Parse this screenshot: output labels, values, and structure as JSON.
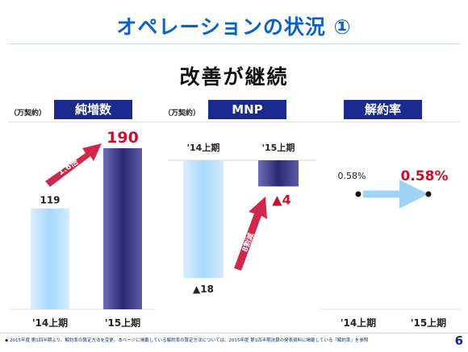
{
  "page": {
    "title": "オペレーションの状況 ①",
    "subtitle": "改善が継続",
    "footnote": "◆ 2015年度 第1四半期より、解約率の算定方法を変更。本ページに掲載している解約率の算定方法については、2015年度 第1四半期決算の発表資料に掲載している「解約率」を参照",
    "page_number": "6"
  },
  "colors": {
    "title": "#0a62c8",
    "header_bg": "#1b2a8f",
    "highlight": "#c8102e",
    "bar_light": "#aedcfb",
    "bar_dark": "#2c2a78",
    "arrow_pink": "#d0284a",
    "arrow_blue": "#9fd3f7"
  },
  "chart_data": [
    {
      "type": "bar",
      "title": "純増数",
      "unit": "（万契約）",
      "categories": [
        "'14上期",
        "'15上期"
      ],
      "values": [
        119,
        190
      ],
      "value_labels": [
        "119",
        "190"
      ],
      "annotation": "1.6倍",
      "ylim": [
        0,
        190
      ]
    },
    {
      "type": "bar",
      "title": "MNP",
      "unit": "（万契約）",
      "categories": [
        "'14上期",
        "'15上期"
      ],
      "values": [
        -18,
        -4
      ],
      "value_labels": [
        "▲18",
        "▲4"
      ],
      "annotation": "8割減",
      "ylim": [
        -18,
        0
      ]
    },
    {
      "type": "scatter",
      "title": "解約率",
      "categories": [
        "'14上期",
        "'15上期"
      ],
      "values": [
        0.58,
        0.58
      ],
      "value_labels": [
        "0.58%",
        "0.58%"
      ]
    }
  ]
}
